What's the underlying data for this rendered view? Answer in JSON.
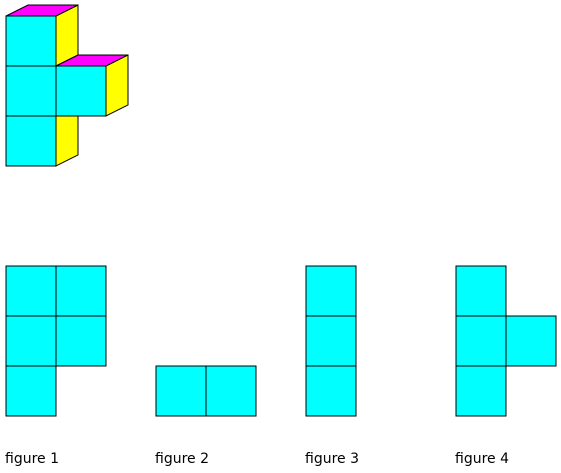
{
  "colors": {
    "front": "#00ffff",
    "top": "#ff00ff",
    "side": "#ffff00",
    "edge": "#000000",
    "background": "#ffffff"
  },
  "figures": [
    {
      "caption": "figure 1",
      "cells": [
        [
          0,
          0
        ],
        [
          1,
          0
        ],
        [
          0,
          1
        ],
        [
          1,
          1
        ],
        [
          0,
          2
        ]
      ]
    },
    {
      "caption": "figure 2",
      "cells": [
        [
          0,
          2
        ],
        [
          1,
          2
        ]
      ]
    },
    {
      "caption": "figure 3",
      "cells": [
        [
          0,
          0
        ],
        [
          0,
          1
        ],
        [
          0,
          2
        ]
      ]
    },
    {
      "caption": "figure 4",
      "cells": [
        [
          0,
          0
        ],
        [
          0,
          1
        ],
        [
          1,
          1
        ],
        [
          0,
          2
        ]
      ]
    }
  ]
}
